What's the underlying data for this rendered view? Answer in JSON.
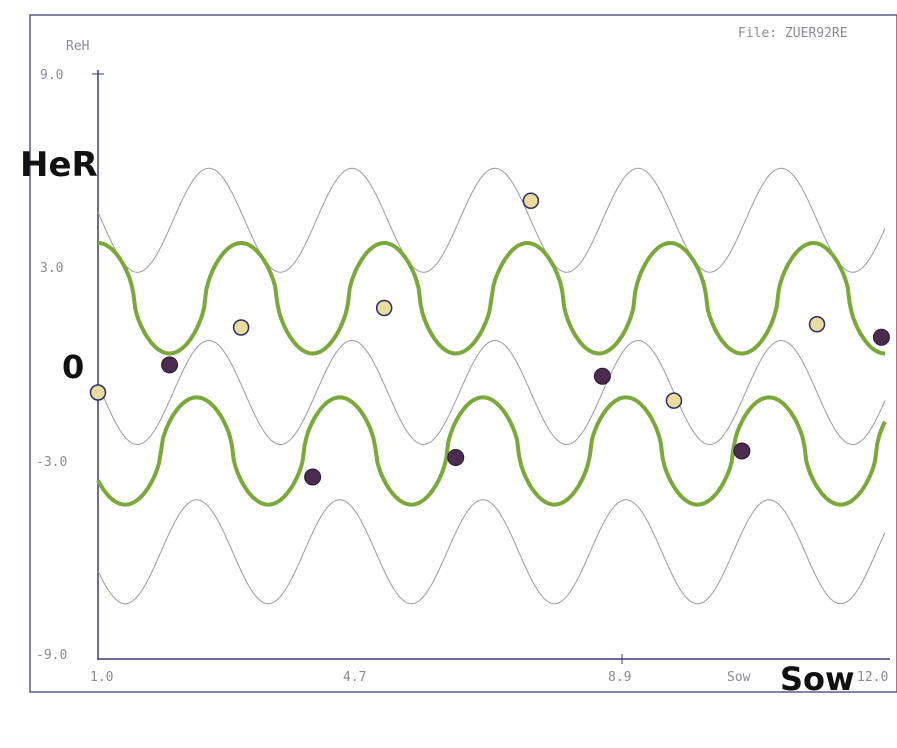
{
  "header": {
    "file_label": "File: ZUER92RE"
  },
  "labels": {
    "y_unit_small": "ReH",
    "y_axis_big": "HeR",
    "zero_big": "0",
    "x_unit_small": "Sow",
    "x_axis_big": "Sow"
  },
  "colors": {
    "accent": "#7aa83a",
    "thin_line": "#9a9aa0",
    "axis": "#3a3a7a",
    "dot_dark": "#4b2c4f",
    "dot_light": "#e8dca0"
  },
  "chart_data": {
    "type": "line",
    "title": "",
    "xlabel": "Sow",
    "ylabel": "HeR",
    "xlim": [
      1.0,
      12.0
    ],
    "ylim": [
      -9.0,
      9.0
    ],
    "x_ticks": [
      "1.0",
      "4.7",
      "8.9",
      "12.0"
    ],
    "y_ticks": [
      "9.0",
      "3.0",
      "-3.0",
      "-9.0"
    ],
    "period": 2.0,
    "series": [
      {
        "kind": "upper-thin-band",
        "center": 4.5,
        "amplitude": 1.6,
        "phase": 0.45
      },
      {
        "kind": "upper-green",
        "center": 2.1,
        "amplitude": 1.7,
        "phase": 0.0
      },
      {
        "kind": "middle-thin",
        "center": -0.8,
        "amplitude": 1.6,
        "phase": 0.45
      },
      {
        "kind": "lower-green",
        "center": -2.6,
        "amplitude": 1.65,
        "phase": 0.62
      },
      {
        "kind": "lower-thin-band",
        "center": -5.7,
        "amplitude": 1.6,
        "phase": 0.62
      }
    ],
    "points_dark": [
      {
        "x": 2.0,
        "y": 0.05
      },
      {
        "x": 4.0,
        "y": -3.4
      },
      {
        "x": 6.0,
        "y": -2.8
      },
      {
        "x": 8.05,
        "y": -0.3
      },
      {
        "x": 10.0,
        "y": -2.6
      },
      {
        "x": 11.95,
        "y": 0.9
      }
    ],
    "points_light": [
      {
        "x": 1.0,
        "y": -0.8
      },
      {
        "x": 3.0,
        "y": 1.2
      },
      {
        "x": 5.0,
        "y": 1.8
      },
      {
        "x": 7.05,
        "y": 5.1
      },
      {
        "x": 9.05,
        "y": -1.05
      },
      {
        "x": 11.05,
        "y": 1.3
      }
    ]
  }
}
